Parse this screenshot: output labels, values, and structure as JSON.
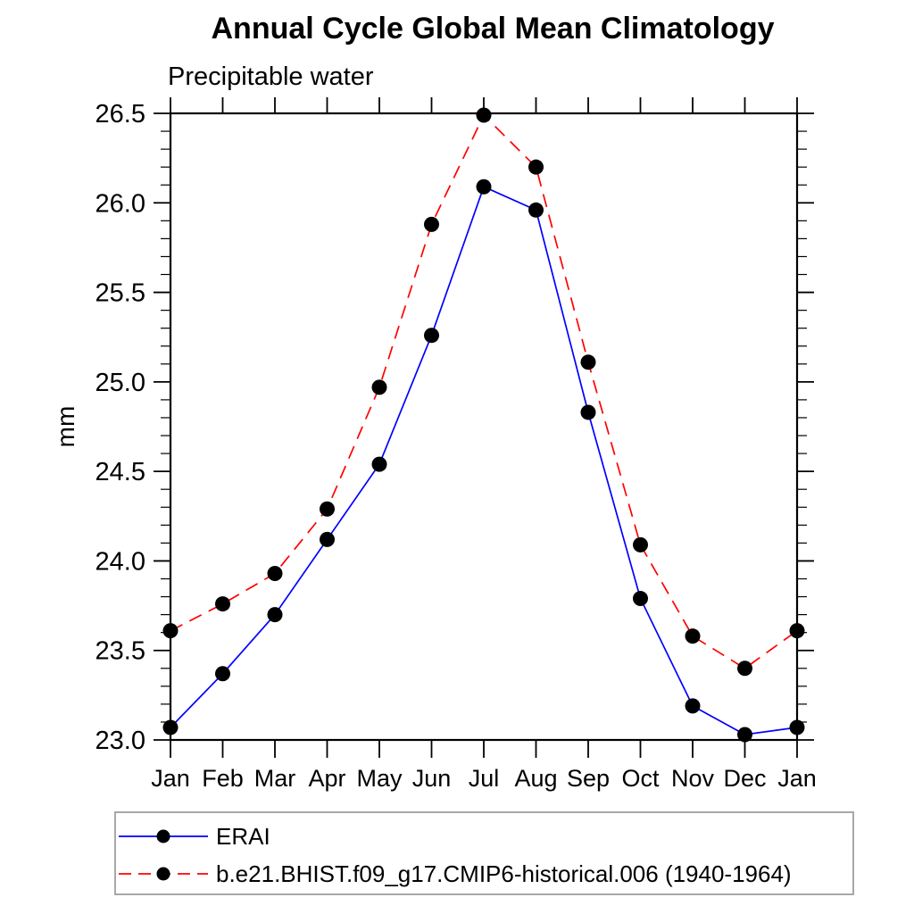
{
  "page": {
    "background": "#ffffff"
  },
  "chart_data": {
    "type": "line",
    "title": "Annual Cycle Global Mean Climatology",
    "subtitle": "Precipitable water",
    "ylabel": "mm",
    "xlabel": "",
    "categories": [
      "Jan",
      "Feb",
      "Mar",
      "Apr",
      "May",
      "Jun",
      "Jul",
      "Aug",
      "Sep",
      "Oct",
      "Nov",
      "Dec",
      "Jan"
    ],
    "ylim": [
      23.0,
      26.5
    ],
    "ytick_interval": 0.5,
    "yminor_interval": 0.1,
    "ytick_labels": [
      "23.0",
      "23.5",
      "24.0",
      "24.5",
      "25.0",
      "25.5",
      "26.0",
      "26.5"
    ],
    "grid": false,
    "legend_position": "bottom-outside",
    "axis_color": "#000000",
    "marker_color": "#000000",
    "series": [
      {
        "name": "ERAI",
        "color": "#0000ff",
        "line_style": "solid",
        "marker": "filled-circle",
        "values": [
          23.07,
          23.37,
          23.7,
          24.12,
          24.54,
          25.26,
          26.09,
          25.96,
          24.83,
          23.79,
          23.19,
          23.03,
          23.07
        ]
      },
      {
        "name": "b.e21.BHIST.f09_g17.CMIP6-historical.006 (1940-1964)",
        "color": "#ff0000",
        "line_style": "dashed",
        "marker": "filled-circle",
        "values": [
          23.61,
          23.76,
          23.93,
          24.29,
          24.97,
          25.88,
          26.49,
          26.2,
          25.11,
          24.09,
          23.58,
          23.4,
          23.61
        ]
      }
    ]
  }
}
